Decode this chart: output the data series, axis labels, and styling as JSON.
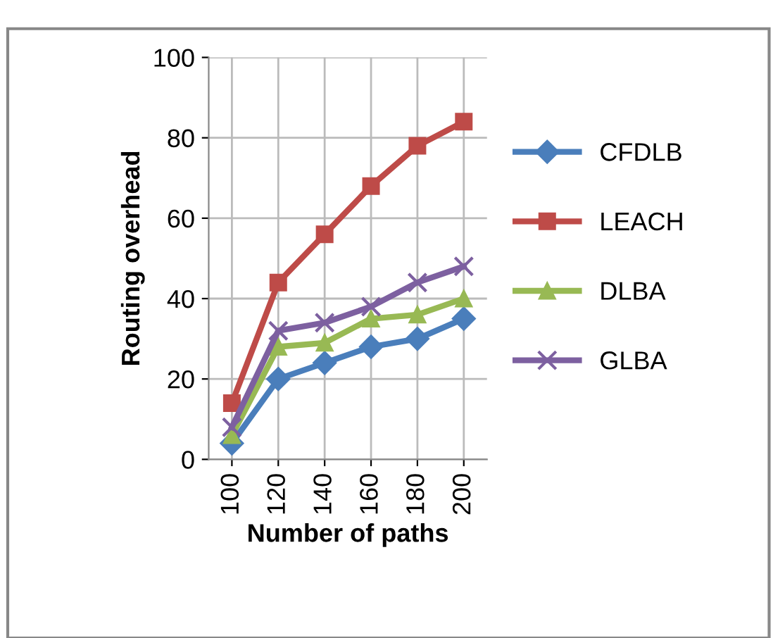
{
  "chart_data": {
    "type": "line",
    "xlabel": "Number of paths",
    "ylabel": "Routing overhead",
    "categories": [
      "100",
      "120",
      "140",
      "160",
      "180",
      "200"
    ],
    "series": [
      {
        "name": "CFDLB",
        "color": "#4a7ebb",
        "marker": "diamond",
        "values": [
          4,
          20,
          24,
          28,
          30,
          35
        ]
      },
      {
        "name": "LEACH",
        "color": "#be4b48",
        "marker": "square",
        "values": [
          14,
          44,
          56,
          68,
          78,
          84
        ]
      },
      {
        "name": "DLBA",
        "color": "#98b954",
        "marker": "triangle",
        "values": [
          6,
          28,
          29,
          35,
          36,
          40
        ]
      },
      {
        "name": "GLBA",
        "color": "#7d60a0",
        "marker": "cross",
        "values": [
          8,
          32,
          34,
          38,
          44,
          48
        ]
      }
    ],
    "ylim": [
      0,
      100
    ],
    "yticks": [
      0,
      20,
      40,
      60,
      80,
      100
    ],
    "grid": true,
    "legend": "right"
  }
}
